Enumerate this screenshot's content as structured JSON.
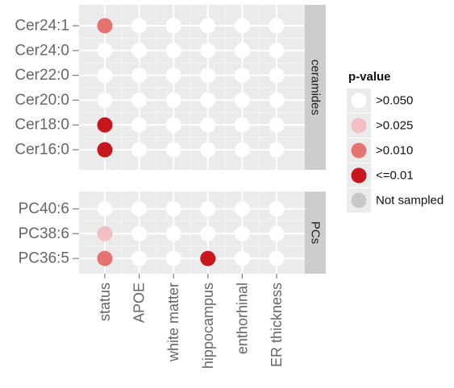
{
  "chart_data": {
    "type": "scatter",
    "x_categories": [
      "status",
      "APOE",
      "white matter",
      "hippocampus",
      "enthorhinal",
      "ER thickness"
    ],
    "facets": [
      {
        "label": "ceramides",
        "y_categories": [
          "Cer24:1",
          "Cer24:0",
          "Cer22:0",
          "Cer20:0",
          "Cer18:0",
          "Cer16:0"
        ],
        "cells": [
          [
            "p>0.010",
            "p>0.050",
            "p>0.050",
            "p>0.050",
            "p>0.050",
            "p>0.050"
          ],
          [
            "p>0.050",
            "p>0.050",
            "p>0.050",
            "p>0.050",
            "p>0.050",
            "p>0.050"
          ],
          [
            "p>0.050",
            "p>0.050",
            "p>0.050",
            "p>0.050",
            "p>0.050",
            "p>0.050"
          ],
          [
            "p>0.050",
            "p>0.050",
            "p>0.050",
            "p>0.050",
            "p>0.050",
            "p>0.050"
          ],
          [
            "p<=0.01",
            "p>0.050",
            "p>0.050",
            "p>0.050",
            "p>0.050",
            "p>0.050"
          ],
          [
            "p<=0.01",
            "p>0.050",
            "p>0.050",
            "p>0.050",
            "p>0.050",
            "p>0.050"
          ]
        ]
      },
      {
        "label": "PCs",
        "y_categories": [
          "PC40:6",
          "PC38:6",
          "PC36:5"
        ],
        "cells": [
          [
            "p>0.050",
            "p>0.050",
            "p>0.050",
            "p>0.050",
            "p>0.050",
            "p>0.050"
          ],
          [
            "p>0.025",
            "p>0.050",
            "p>0.050",
            "p>0.050",
            "p>0.050",
            "p>0.050"
          ],
          [
            "p>0.010",
            "p>0.050",
            "p>0.050",
            "p<=0.01",
            "p>0.050",
            "p>0.050"
          ]
        ]
      }
    ],
    "legend": {
      "title": "p-value",
      "placement": "right",
      "entries": [
        {
          "key": "p>0.050",
          "label": ">0.050",
          "color": "#ffffff"
        },
        {
          "key": "p>0.025",
          "label": ">0.025",
          "color": "#f2c0c2"
        },
        {
          "key": "p>0.010",
          "label": ">0.010",
          "color": "#e57370"
        },
        {
          "key": "p<=0.01",
          "label": "<=0.01",
          "color": "#c8161e"
        },
        {
          "key": "not-sampled",
          "label": "Not sampled",
          "color": "#c8c8c8"
        }
      ]
    },
    "panel_color": "#ebebeb",
    "strip_color": "#cccccc",
    "grid": true
  }
}
